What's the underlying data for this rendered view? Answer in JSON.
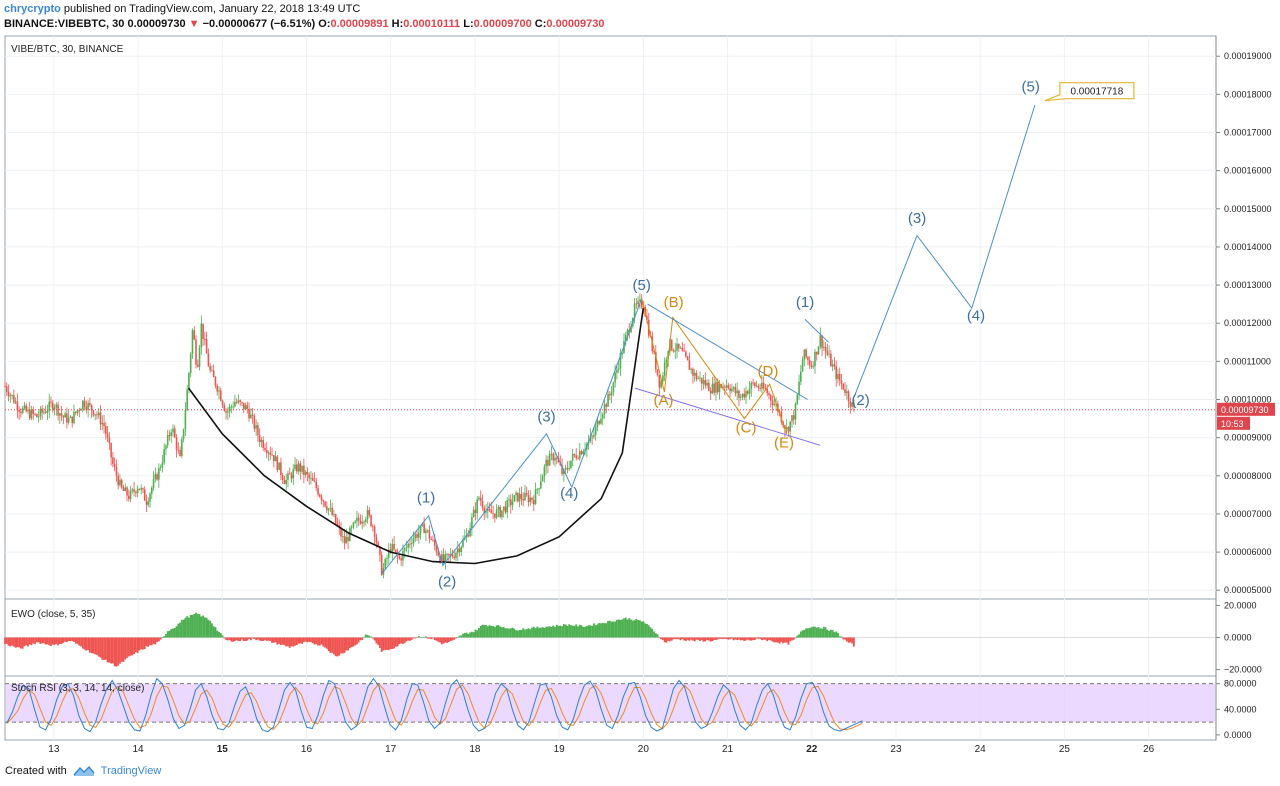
{
  "header": {
    "author": "chrycrypto",
    "published": "published on TradingView.com, January 22, 2018 13:49 UTC",
    "symbol": "BINANCE:VIBEBTC, 30",
    "last": "0.00009730",
    "change_arrow": "▼",
    "change": "−0.00000677 (−6.51%)",
    "o_label": "O:",
    "o_val": "0.00009891",
    "h_label": "H:",
    "h_val": "0.00010111",
    "l_label": "L:",
    "l_val": "0.00009700",
    "c_label": "C:",
    "c_val": "0.00009730"
  },
  "footer": {
    "created": "Created with",
    "brand": "TradingView",
    "logo_icon": "tradingview-logo-icon"
  },
  "colors": {
    "up": "#4caf50",
    "down": "#ef5350",
    "wave": "#4a90c8",
    "abc": "#d4880f",
    "rsi_band": "#e6ccff",
    "price_tag": "#e0454d"
  },
  "chart_data": [
    {
      "type": "candlestick",
      "legend": "VIBE/BTC, 30, BINANCE",
      "y_ticks": [
        "0.00019000",
        "0.00018000",
        "0.00017000",
        "0.00016000",
        "0.00015000",
        "0.00014000",
        "0.00013000",
        "0.00012000",
        "0.00011000",
        "0.00010000",
        "0.00009000",
        "0.00008000",
        "0.00007000",
        "0.00006000",
        "0.00005000"
      ],
      "ylim": [
        4.77e-05,
        0.0001953
      ],
      "x_ticks": [
        "13",
        "14",
        "15",
        "16",
        "17",
        "18",
        "19",
        "20",
        "21",
        "22",
        "23",
        "24",
        "25",
        "26"
      ],
      "x_tick_values": [
        13,
        14,
        15,
        16,
        17,
        18,
        19,
        20,
        21,
        22,
        23,
        24,
        25,
        26
      ],
      "xlim": [
        12.42,
        26.8
      ],
      "last_price": {
        "value": 9.73e-05,
        "label": "0.00009730",
        "countdown": "10:53"
      },
      "price_path": [
        [
          12.42,
          0.0001035
        ],
        [
          12.6,
          9.75e-05
        ],
        [
          12.8,
          9.55e-05
        ],
        [
          13.0,
          9.9e-05
        ],
        [
          13.1,
          9.55e-05
        ],
        [
          13.2,
          9.45e-05
        ],
        [
          13.35,
          9.95e-05
        ],
        [
          13.5,
          9.65e-05
        ],
        [
          13.6,
          9.3e-05
        ],
        [
          13.7,
          8.3e-05
        ],
        [
          13.8,
          7.65e-05
        ],
        [
          13.9,
          7.45e-05
        ],
        [
          14.0,
          7.75e-05
        ],
        [
          14.1,
          7.35e-05
        ],
        [
          14.25,
          8.15e-05
        ],
        [
          14.4,
          9.3e-05
        ],
        [
          14.5,
          8.4e-05
        ],
        [
          14.6,
          0.000106
        ],
        [
          14.65,
          0.000119
        ],
        [
          14.7,
          0.000108
        ],
        [
          14.75,
          0.0001195
        ],
        [
          14.85,
          0.0001075
        ],
        [
          14.95,
          0.000103
        ],
        [
          15.05,
          9.65e-05
        ],
        [
          15.15,
          9.95e-05
        ],
        [
          15.3,
          9.75e-05
        ],
        [
          15.45,
          8.95e-05
        ],
        [
          15.6,
          8.55e-05
        ],
        [
          15.75,
          7.85e-05
        ],
        [
          15.9,
          8.25e-05
        ],
        [
          16.1,
          7.75e-05
        ],
        [
          16.3,
          7e-05
        ],
        [
          16.45,
          6.25e-05
        ],
        [
          16.6,
          6.8e-05
        ],
        [
          16.72,
          7e-05
        ],
        [
          16.8,
          6.65e-05
        ],
        [
          16.9,
          5.45e-05
        ],
        [
          17.0,
          6.15e-05
        ],
        [
          17.1,
          5.8e-05
        ],
        [
          17.25,
          6.35e-05
        ],
        [
          17.4,
          6.65e-05
        ],
        [
          17.5,
          6.25e-05
        ],
        [
          17.62,
          5.75e-05
        ],
        [
          17.75,
          5.95e-05
        ],
        [
          17.9,
          6.4e-05
        ],
        [
          18.05,
          7.45e-05
        ],
        [
          18.15,
          7e-05
        ],
        [
          18.3,
          7.05e-05
        ],
        [
          18.5,
          7.45e-05
        ],
        [
          18.7,
          7.4e-05
        ],
        [
          18.85,
          8.35e-05
        ],
        [
          18.95,
          8.55e-05
        ],
        [
          19.05,
          8e-05
        ],
        [
          19.15,
          8.45e-05
        ],
        [
          19.25,
          8.65e-05
        ],
        [
          19.4,
          9e-05
        ],
        [
          19.5,
          9.65e-05
        ],
        [
          19.6,
          0.000101
        ],
        [
          19.75,
          0.000113
        ],
        [
          19.9,
          0.000124
        ],
        [
          20.0,
          0.0001255
        ],
        [
          20.1,
          0.000114
        ],
        [
          20.2,
          0.0001035
        ],
        [
          20.3,
          0.0001145
        ],
        [
          20.45,
          0.0001125
        ],
        [
          20.6,
          0.0001065
        ],
        [
          20.8,
          0.000103
        ],
        [
          21.0,
          0.000104
        ],
        [
          21.15,
          0.0001005
        ],
        [
          21.3,
          0.000104
        ],
        [
          21.45,
          0.0001025
        ],
        [
          21.6,
          9.75e-05
        ],
        [
          21.7,
          9.2e-05
        ],
        [
          21.8,
          9.65e-05
        ],
        [
          21.9,
          0.000112
        ],
        [
          22.0,
          0.000109
        ],
        [
          22.1,
          0.000116
        ],
        [
          22.2,
          0.000111
        ],
        [
          22.3,
          0.000106
        ],
        [
          22.4,
          0.0001025
        ],
        [
          22.5,
          9.73e-05
        ]
      ],
      "cup_curve": [
        [
          14.6,
          0.000103
        ],
        [
          15.0,
          9.1e-05
        ],
        [
          15.5,
          8e-05
        ],
        [
          16.0,
          7.2e-05
        ],
        [
          16.5,
          6.5e-05
        ],
        [
          17.0,
          6e-05
        ],
        [
          17.5,
          5.75e-05
        ],
        [
          18.0,
          5.7e-05
        ],
        [
          18.5,
          5.9e-05
        ],
        [
          19.0,
          6.4e-05
        ],
        [
          19.5,
          7.4e-05
        ],
        [
          19.75,
          8.6e-05
        ],
        [
          20.0,
          0.000124
        ]
      ],
      "wave_impulse_1": [
        [
          16.9,
          5.45e-05
        ],
        [
          17.45,
          6.95e-05
        ],
        [
          17.62,
          5.65e-05
        ],
        [
          18.85,
          9.1e-05
        ],
        [
          19.15,
          7.7e-05
        ],
        [
          19.98,
          0.0001265
        ]
      ],
      "wave_projection": [
        [
          22.5,
          0.0001005
        ],
        [
          23.25,
          0.000143
        ],
        [
          23.9,
          0.000124
        ],
        [
          24.65,
          0.0001772
        ]
      ],
      "wave_post_1": [
        [
          21.92,
          0.000121
        ],
        [
          22.2,
          0.000115
        ]
      ],
      "abcde_path": [
        [
          19.98,
          0.0001265
        ],
        [
          20.25,
          0.000102
        ],
        [
          20.35,
          0.0001215
        ],
        [
          21.2,
          9.5e-05
        ],
        [
          21.5,
          0.000104
        ],
        [
          21.7,
          9.1e-05
        ]
      ],
      "channel_upper": [
        [
          20.05,
          0.000125
        ],
        [
          21.95,
          0.0001
        ]
      ],
      "channel_lower": [
        [
          19.9,
          0.000103
        ],
        [
          22.1,
          8.8e-05
        ]
      ],
      "wave_labels": [
        {
          "text": "(1)",
          "x": 17.42,
          "y": 7.3e-05
        },
        {
          "text": "(2)",
          "x": 17.67,
          "y": 5.1e-05
        },
        {
          "text": "(3)",
          "x": 18.85,
          "y": 9.43e-05
        },
        {
          "text": "(4)",
          "x": 19.12,
          "y": 7.42e-05
        },
        {
          "text": "(5)",
          "x": 19.98,
          "y": 0.0001287
        },
        {
          "text": "(1)",
          "x": 21.92,
          "y": 0.0001243
        },
        {
          "text": "(2)",
          "x": 22.58,
          "y": 9.85e-05
        },
        {
          "text": "(3)",
          "x": 23.25,
          "y": 0.0001463
        },
        {
          "text": "(4)",
          "x": 23.95,
          "y": 0.0001207
        },
        {
          "text": "(5)",
          "x": 24.6,
          "y": 0.0001808
        }
      ],
      "abc_labels": [
        {
          "text": "(B)",
          "x": 20.36,
          "y": 0.0001243
        },
        {
          "text": "(A)",
          "x": 20.24,
          "y": 9.85e-05
        },
        {
          "text": "(C)",
          "x": 21.22,
          "y": 9.14e-05
        },
        {
          "text": "(D)",
          "x": 21.48,
          "y": 0.0001062
        },
        {
          "text": "(E)",
          "x": 21.67,
          "y": 8.74e-05
        }
      ],
      "target": {
        "label": "0.00017718",
        "x": 24.78,
        "y": 0.0001807
      }
    },
    {
      "type": "histogram",
      "legend": "EWO (close, 5, 35)",
      "y_ticks": [
        "20.0000",
        "0.0000",
        "−20.0000"
      ],
      "y_tick_values": [
        20,
        0,
        -20
      ],
      "ylim": [
        -24,
        24
      ],
      "segments": [
        [
          12.42,
          -4
        ],
        [
          12.6,
          -7
        ],
        [
          12.8,
          -3
        ],
        [
          13.0,
          -5
        ],
        [
          13.2,
          -2
        ],
        [
          13.4,
          -8
        ],
        [
          13.6,
          -14
        ],
        [
          13.75,
          -18
        ],
        [
          13.9,
          -12
        ],
        [
          14.1,
          -6
        ],
        [
          14.25,
          -3
        ],
        [
          14.35,
          4
        ],
        [
          14.45,
          7
        ],
        [
          14.55,
          12
        ],
        [
          14.7,
          15
        ],
        [
          14.85,
          11
        ],
        [
          14.95,
          4
        ],
        [
          15.05,
          -2
        ],
        [
          15.2,
          -2
        ],
        [
          15.4,
          -1
        ],
        [
          15.6,
          -3
        ],
        [
          15.8,
          -6
        ],
        [
          16.0,
          -3
        ],
        [
          16.2,
          -5
        ],
        [
          16.35,
          -12
        ],
        [
          16.45,
          -9
        ],
        [
          16.6,
          -4
        ],
        [
          16.72,
          2
        ],
        [
          16.8,
          -1
        ],
        [
          16.9,
          -9
        ],
        [
          17.05,
          -6
        ],
        [
          17.2,
          -2
        ],
        [
          17.35,
          1
        ],
        [
          17.5,
          -1
        ],
        [
          17.62,
          -4
        ],
        [
          17.75,
          -2
        ],
        [
          17.85,
          2
        ],
        [
          18.0,
          4
        ],
        [
          18.1,
          8
        ],
        [
          18.3,
          7
        ],
        [
          18.5,
          5
        ],
        [
          18.7,
          6
        ],
        [
          18.9,
          7
        ],
        [
          19.1,
          8
        ],
        [
          19.3,
          7
        ],
        [
          19.5,
          9
        ],
        [
          19.7,
          11
        ],
        [
          19.8,
          12
        ],
        [
          20.0,
          10
        ],
        [
          20.15,
          3
        ],
        [
          20.25,
          -3
        ],
        [
          20.4,
          -1
        ],
        [
          20.6,
          -2
        ],
        [
          20.8,
          -2
        ],
        [
          21.0,
          -1
        ],
        [
          21.2,
          -2
        ],
        [
          21.4,
          -1
        ],
        [
          21.6,
          -3
        ],
        [
          21.72,
          -4
        ],
        [
          21.8,
          -1
        ],
        [
          21.9,
          5
        ],
        [
          22.0,
          7
        ],
        [
          22.15,
          6
        ],
        [
          22.3,
          3
        ],
        [
          22.4,
          -2
        ],
        [
          22.5,
          -5
        ],
        [
          22.52,
          -5
        ]
      ]
    },
    {
      "type": "line",
      "legend": "Stoch RSI (3, 3, 14, 14, close)",
      "y_ticks": [
        "80.0000",
        "40.0000",
        "0.0000"
      ],
      "y_tick_values": [
        80,
        40,
        0
      ],
      "band": [
        20,
        80
      ],
      "ylim": [
        -8,
        92
      ],
      "k_color": "#2f80d1",
      "d_color": "#f08a24",
      "k_values": [
        18,
        35,
        60,
        78,
        72,
        40,
        12,
        8,
        25,
        55,
        75,
        80,
        62,
        30,
        10,
        5,
        20,
        48,
        72,
        85,
        70,
        45,
        20,
        8,
        6,
        30,
        62,
        88,
        80,
        55,
        25,
        10,
        15,
        40,
        70,
        80,
        60,
        30,
        10,
        8,
        18,
        45,
        68,
        75,
        55,
        25,
        8,
        5,
        12,
        40,
        70,
        82,
        70,
        38,
        12,
        10,
        30,
        62,
        85,
        80,
        50,
        20,
        8,
        14,
        45,
        75,
        88,
        76,
        44,
        16,
        8,
        22,
        55,
        80,
        78,
        52,
        22,
        10,
        18,
        50,
        78,
        86,
        70,
        40,
        15,
        6,
        10,
        35,
        65,
        80,
        72,
        40,
        15,
        8,
        20,
        50,
        78,
        80,
        60,
        30,
        12,
        8,
        25,
        55,
        78,
        84,
        70,
        40,
        15,
        10,
        30,
        60,
        80,
        82,
        60,
        30,
        12,
        6,
        10,
        40,
        72,
        85,
        75,
        45,
        20,
        10,
        14,
        35,
        60,
        78,
        70,
        40,
        15,
        8,
        18,
        46,
        70,
        80,
        62,
        32,
        12,
        8,
        28,
        58,
        80,
        82,
        66,
        36,
        14,
        8,
        6,
        10,
        14,
        18,
        22
      ]
    }
  ]
}
